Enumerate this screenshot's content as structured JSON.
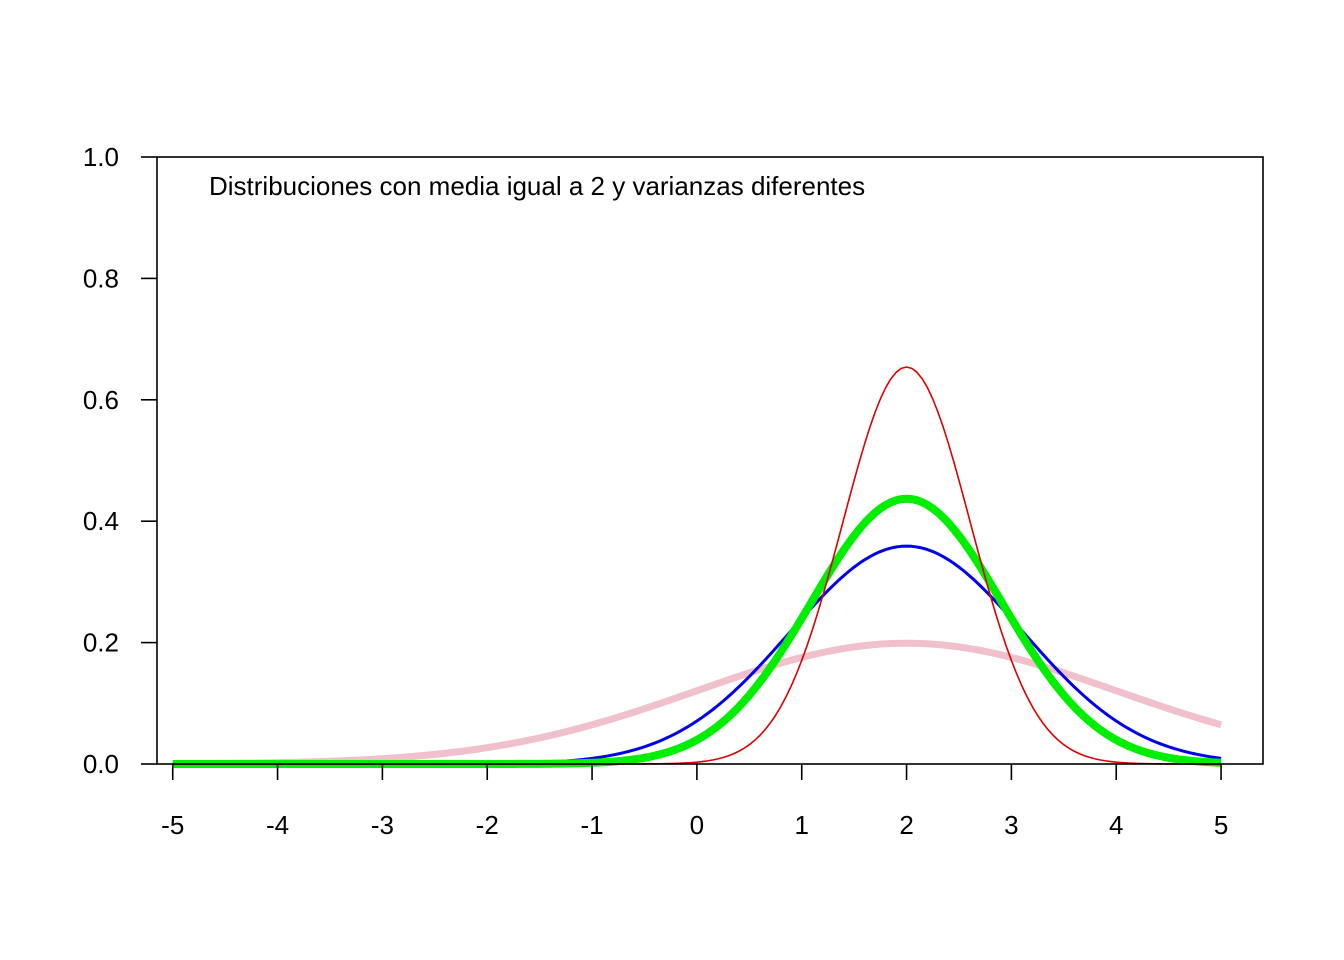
{
  "chart_data": {
    "type": "line",
    "title": "",
    "xlabel": "",
    "ylabel": "",
    "annotation": "Distribuciones con media igual a 2 y varianzas diferentes",
    "xlim": [
      -5.15,
      5.4
    ],
    "ylim": [
      0,
      1
    ],
    "x_ticks": [
      "-5",
      "-4",
      "-3",
      "-2",
      "-1",
      "0",
      "1",
      "2",
      "3",
      "4",
      "5"
    ],
    "y_ticks": [
      "0.0",
      "0.2",
      "0.4",
      "0.6",
      "0.8",
      "1.0"
    ],
    "grid": false,
    "legend": "none",
    "series": [
      {
        "color": "#f0c0cb",
        "line_width": 7,
        "mean": 2,
        "sd": 2,
        "peak": 0.199,
        "x_range": [
          -5,
          5
        ]
      },
      {
        "color": "#0000ee",
        "line_width": 3,
        "mean": 2,
        "sd": 1.11,
        "peak": 0.359,
        "x_range": [
          -5,
          5
        ]
      },
      {
        "color": "#00ee00",
        "line_width": 8,
        "mean": 2,
        "sd": 0.913,
        "peak": 0.437,
        "x_range": [
          -5,
          5
        ]
      },
      {
        "color": "#dd0000",
        "line_width": 1.6,
        "mean": 2,
        "sd": 0.61,
        "peak": 0.654,
        "x_range": [
          -5,
          5
        ]
      }
    ]
  }
}
